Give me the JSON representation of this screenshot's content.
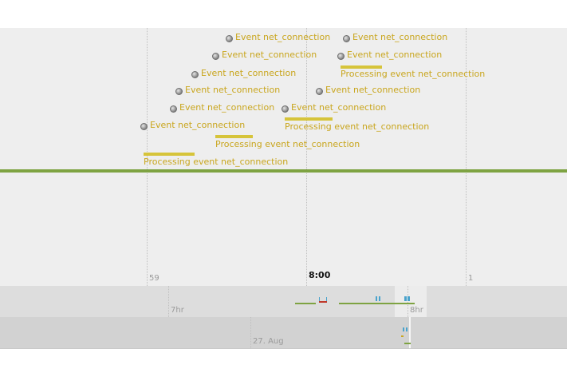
{
  "main_axis": {
    "labels": [
      "59",
      "8:00",
      "1"
    ]
  },
  "events": [
    {
      "label": "Event net_connection"
    },
    {
      "label": "Event net_connection"
    },
    {
      "label": "Event net_connection"
    },
    {
      "label": "Event net_connection"
    },
    {
      "label": "Event net_connection"
    },
    {
      "label": "Event net_connection"
    },
    {
      "label": "Event net_connection"
    },
    {
      "label": "Event net_connection"
    },
    {
      "label": "Event net_connection"
    },
    {
      "label": "Event net_connection"
    }
  ],
  "processing": [
    {
      "label": "Processing event net_connection"
    },
    {
      "label": "Processing event net_connection"
    },
    {
      "label": "Processing event net_connection"
    },
    {
      "label": "Processing event net_connection"
    }
  ],
  "overview_band": {
    "labels": [
      "7hr",
      "8hr"
    ]
  },
  "date_band": {
    "labels": [
      "27. Aug"
    ]
  },
  "colors": {
    "event_text": "#c9a61e",
    "duration_bar": "#d6c43a",
    "now_line": "#7ea342",
    "overview_tick": "#4aa3cc",
    "band_background": "#eeeeee"
  }
}
